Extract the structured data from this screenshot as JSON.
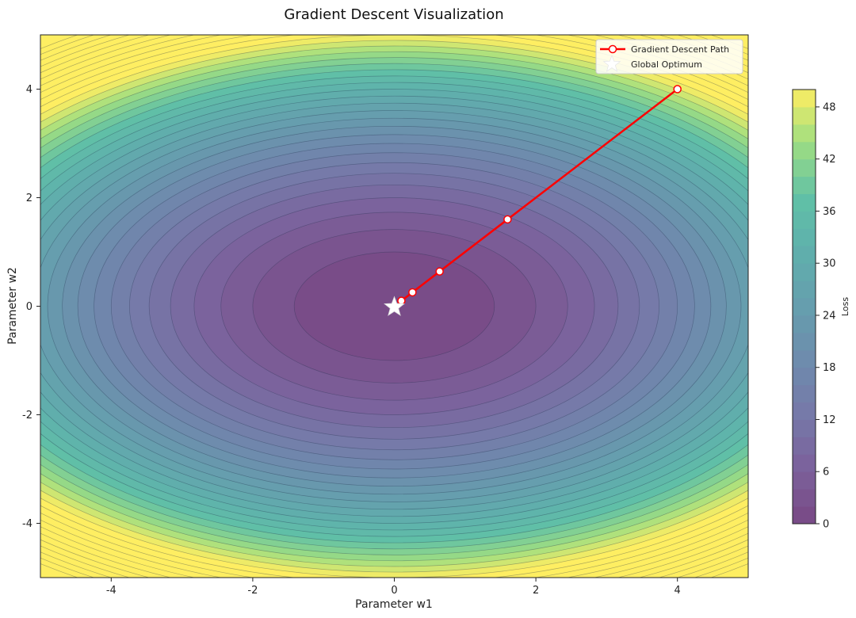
{
  "chart_data": {
    "type": "contour",
    "title": "Gradient Descent Visualization",
    "xlabel": "Parameter w1",
    "ylabel": "Parameter w2",
    "xlim": [
      -5,
      5
    ],
    "ylim": [
      -5,
      5
    ],
    "x_ticks": [
      -4,
      -2,
      0,
      2,
      4
    ],
    "y_ticks": [
      -4,
      -2,
      0,
      2,
      4
    ],
    "surface": {
      "formula": "w1^2 + 2*w2^2",
      "levels_step": 2,
      "levels_max": 50
    },
    "colorbar": {
      "label": "Loss",
      "min": 0,
      "max": 50,
      "ticks": [
        0,
        6,
        12,
        18,
        24,
        30,
        36,
        42,
        48
      ]
    },
    "series": [
      {
        "name": "Gradient Descent Path",
        "color": "#ff0000",
        "points": [
          {
            "x": 4.0,
            "y": 4.0
          },
          {
            "x": 1.6,
            "y": 1.6
          },
          {
            "x": 0.64,
            "y": 0.64
          },
          {
            "x": 0.256,
            "y": 0.256
          },
          {
            "x": 0.1,
            "y": 0.1
          }
        ]
      }
    ],
    "optimum": {
      "name": "Global Optimum",
      "x": 0,
      "y": 0,
      "color": "#ffffff"
    },
    "legend_position": "top-right",
    "colormap": "viridis"
  }
}
